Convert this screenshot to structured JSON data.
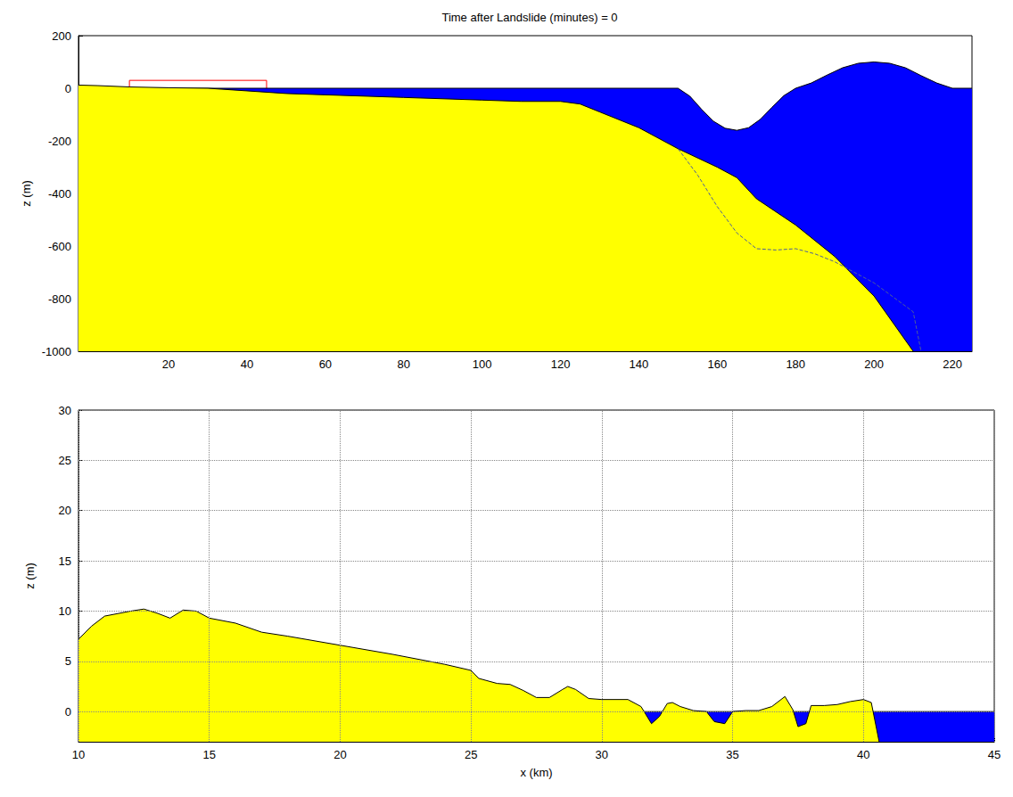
{
  "chart_data": [
    {
      "type": "area",
      "title": "Time after Landslide (minutes) = 0",
      "y_label": "z (m)",
      "xlim": [
        -3,
        225
      ],
      "xticks": [
        20,
        40,
        60,
        80,
        100,
        120,
        140,
        160,
        180,
        200,
        220
      ],
      "ylim": [
        -1000,
        200
      ],
      "yticks": [
        -1000,
        -800,
        -600,
        -400,
        -200,
        0,
        200
      ],
      "grid": false,
      "series": [
        {
          "type": "area",
          "color": "#0000ff",
          "x": [
            -3,
            150,
            153,
            156,
            159,
            162,
            165,
            168,
            171,
            174,
            177,
            180,
            184,
            188,
            192,
            196,
            200,
            204,
            208,
            212,
            216,
            220,
            225
          ],
          "values": [
            0,
            0,
            -30,
            -80,
            -125,
            -152,
            -160,
            -150,
            -118,
            -72,
            -28,
            0,
            20,
            50,
            78,
            95,
            100,
            95,
            78,
            48,
            20,
            0,
            0
          ]
        },
        {
          "type": "area",
          "color": "#ffff00",
          "x": [
            -3,
            2,
            10,
            20,
            30,
            40,
            50,
            60,
            80,
            100,
            110,
            120,
            125,
            130,
            140,
            150,
            160,
            165,
            170,
            180,
            190,
            200,
            210
          ],
          "values": [
            12,
            10,
            5,
            2,
            0,
            -10,
            -20,
            -25,
            -35,
            -45,
            -50,
            -50,
            -60,
            -90,
            -150,
            -230,
            -300,
            -340,
            -420,
            -520,
            -640,
            -790,
            -1000
          ]
        },
        {
          "type": "line",
          "line_style": "dashed",
          "color": "#4d5f99",
          "x": [
            150,
            155,
            160,
            165,
            170,
            175,
            180,
            185,
            190,
            200,
            210,
            212
          ],
          "values": [
            -230,
            -330,
            -450,
            -550,
            -610,
            -615,
            -610,
            -630,
            -660,
            -740,
            -850,
            -1000
          ]
        }
      ],
      "zoom_box": {
        "x": [
          10,
          45
        ],
        "z": [
          -3,
          30
        ],
        "color": "#ff0000"
      }
    },
    {
      "type": "area",
      "x_label": "x (km)",
      "y_label": "z (m)",
      "xlim": [
        10,
        45
      ],
      "xticks": [
        10,
        15,
        20,
        25,
        30,
        35,
        40,
        45
      ],
      "ylim": [
        -3,
        30
      ],
      "yticks": [
        0,
        5,
        10,
        15,
        20,
        25,
        30
      ],
      "grid": true,
      "series": [
        {
          "type": "area",
          "color": "#0000ff",
          "x": [
            10,
            45
          ],
          "values": [
            0,
            0
          ]
        },
        {
          "type": "area",
          "color": "#ffff00",
          "x": [
            10,
            10.5,
            11,
            12,
            12.5,
            13,
            13.5,
            14,
            14.5,
            15,
            16,
            17,
            18,
            20,
            22,
            24,
            25,
            25.3,
            26,
            26.5,
            27,
            27.5,
            28,
            28.5,
            28.7,
            29,
            29.5,
            30,
            31,
            31.5,
            31.9,
            32.2,
            32.5,
            32.7,
            33,
            33.5,
            34,
            34.3,
            34.7,
            35,
            35.5,
            36,
            36.5,
            37,
            37.3,
            37.5,
            37.8,
            38,
            38.5,
            39,
            39.5,
            40,
            40.3,
            40.6
          ],
          "values": [
            7.2,
            8.5,
            9.5,
            10,
            10.2,
            9.8,
            9.3,
            10.1,
            10,
            9.3,
            8.8,
            7.9,
            7.5,
            6.6,
            5.7,
            4.7,
            4.1,
            3.3,
            2.8,
            2.7,
            2.1,
            1.4,
            1.4,
            2.2,
            2.5,
            2.2,
            1.3,
            1.2,
            1.2,
            0.5,
            -1.2,
            -0.5,
            0.8,
            0.9,
            0.5,
            0.1,
            0,
            -1,
            -1.2,
            0,
            0.1,
            0.1,
            0.5,
            1.5,
            0.2,
            -1.5,
            -1.2,
            0.6,
            0.6,
            0.7,
            1,
            1.2,
            0.9,
            -3
          ]
        }
      ]
    }
  ]
}
